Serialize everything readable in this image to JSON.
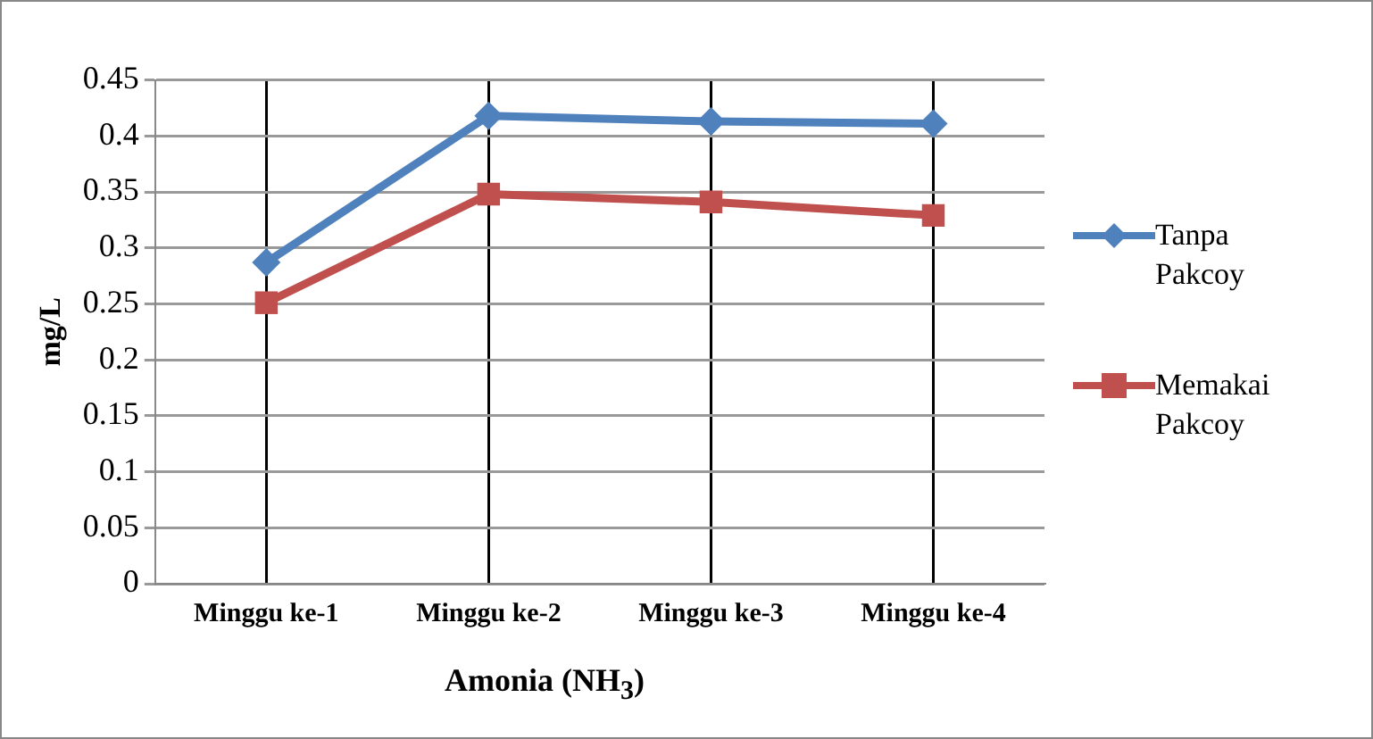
{
  "chart_data": {
    "type": "line",
    "xlabel": "Amonia (NH$_{3}$)",
    "ylabel": "mg/L",
    "categories": [
      "Minggu ke-1",
      "Minggu ke-2",
      "Minggu ke-3",
      "Minggu ke-4"
    ],
    "series": [
      {
        "name": "Tanpa Pakcoy",
        "color": "#4f81bd",
        "marker": "diamond",
        "values": [
          0.287,
          0.418,
          0.413,
          0.411
        ]
      },
      {
        "name": "Memakai Pakcoy",
        "color": "#c0504d",
        "marker": "square",
        "values": [
          0.251,
          0.348,
          0.341,
          0.329
        ]
      }
    ],
    "ylim": [
      0,
      0.45
    ],
    "yticks": [
      0,
      0.05,
      0.1,
      0.15,
      0.2,
      0.25,
      0.3,
      0.35,
      0.4,
      0.45
    ],
    "grid": true,
    "legend": "right"
  }
}
